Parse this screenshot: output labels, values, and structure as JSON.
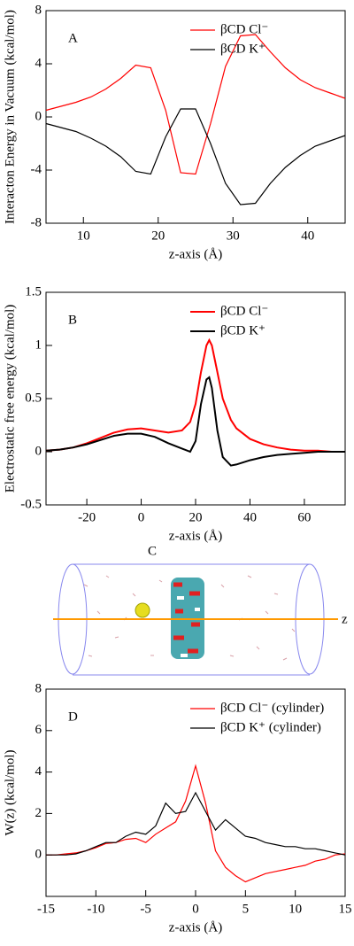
{
  "chart_data": [
    {
      "type": "line",
      "panel_label": "A",
      "xlabel": "z-axis (Å)",
      "ylabel": "Interacton Energy in Vacuum (kcal/mol)",
      "x": [
        5,
        7,
        9,
        11,
        13,
        15,
        17,
        19,
        21,
        23,
        25,
        27,
        29,
        31,
        33,
        35,
        37,
        39,
        41,
        43,
        45
      ],
      "series": [
        {
          "name": "βCD Cl⁻",
          "color": "#ff0000",
          "values": [
            0.5,
            0.8,
            1.1,
            1.5,
            2.1,
            2.9,
            3.9,
            3.7,
            0.5,
            -4.2,
            -4.3,
            -0.5,
            3.8,
            6.1,
            6.2,
            4.9,
            3.7,
            2.8,
            2.2,
            1.8,
            1.4
          ]
        },
        {
          "name": "βCD K⁺",
          "color": "#000000",
          "values": [
            -0.5,
            -0.8,
            -1.1,
            -1.6,
            -2.2,
            -3.0,
            -4.1,
            -4.3,
            -1.5,
            0.6,
            0.6,
            -2.0,
            -5.0,
            -6.6,
            -6.5,
            -5.0,
            -3.8,
            -2.9,
            -2.2,
            -1.8,
            -1.4
          ]
        }
      ],
      "xlim": [
        5,
        45
      ],
      "xticks": [
        10,
        20,
        30,
        40
      ],
      "ylim": [
        -8,
        8
      ],
      "yticks": [
        -8,
        -4,
        0,
        4,
        8
      ],
      "legend": "upper right"
    },
    {
      "type": "line",
      "panel_label": "B",
      "xlabel": "z-axis (Å)",
      "ylabel": "Electrostatic free energy (kcal/mol)",
      "x": [
        -35,
        -30,
        -25,
        -20,
        -15,
        -10,
        -5,
        0,
        5,
        10,
        15,
        18,
        20,
        22,
        24,
        25,
        26,
        28,
        30,
        33,
        35,
        40,
        45,
        50,
        55,
        60,
        65,
        70,
        75
      ],
      "series": [
        {
          "name": "βCD Cl⁻",
          "color": "#ff0000",
          "values": [
            0.01,
            0.02,
            0.04,
            0.08,
            0.13,
            0.18,
            0.21,
            0.22,
            0.2,
            0.18,
            0.2,
            0.28,
            0.45,
            0.75,
            1.0,
            1.05,
            1.0,
            0.75,
            0.5,
            0.3,
            0.22,
            0.12,
            0.07,
            0.04,
            0.02,
            0.01,
            0.01,
            0,
            0
          ]
        },
        {
          "name": "βCD K⁺",
          "color": "#000000",
          "values": [
            0.01,
            0.02,
            0.04,
            0.07,
            0.11,
            0.15,
            0.17,
            0.17,
            0.14,
            0.08,
            0.03,
            0,
            0.1,
            0.45,
            0.68,
            0.7,
            0.6,
            0.2,
            -0.05,
            -0.13,
            -0.12,
            -0.08,
            -0.05,
            -0.03,
            -0.02,
            -0.01,
            0,
            0,
            0
          ]
        }
      ],
      "xlim": [
        -35,
        75
      ],
      "xticks": [
        -20,
        0,
        20,
        40,
        60
      ],
      "ylim": [
        -0.5,
        1.5
      ],
      "yticks": [
        -0.5,
        0,
        0.5,
        1,
        1.5
      ],
      "legend": "upper right"
    },
    {
      "type": "line",
      "panel_label": "D",
      "xlabel": "z-axis (Å)",
      "ylabel": "W(z) (kcal/mol)",
      "x": [
        -15,
        -14,
        -13,
        -12,
        -11,
        -10,
        -9,
        -8,
        -7,
        -6,
        -5,
        -4,
        -3,
        -2,
        -1,
        0,
        1,
        2,
        3,
        4,
        5,
        6,
        7,
        8,
        9,
        10,
        11,
        12,
        13,
        14,
        15
      ],
      "series": [
        {
          "name": "βCD Cl⁻ (cylinder)",
          "color": "#ff0000",
          "values": [
            0,
            0,
            0.05,
            0.1,
            0.2,
            0.35,
            0.55,
            0.6,
            0.75,
            0.8,
            0.6,
            1.0,
            1.3,
            1.6,
            2.6,
            4.3,
            2.5,
            0.2,
            -0.6,
            -1.0,
            -1.3,
            -1.1,
            -0.9,
            -0.8,
            -0.7,
            -0.6,
            -0.5,
            -0.3,
            -0.2,
            0,
            0.05
          ]
        },
        {
          "name": "βCD K⁺ (cylinder)",
          "color": "#000000",
          "values": [
            0,
            0,
            0,
            0.05,
            0.2,
            0.4,
            0.6,
            0.6,
            0.9,
            1.1,
            1.0,
            1.4,
            2.5,
            2.0,
            2.1,
            3.0,
            2.1,
            1.2,
            1.7,
            1.3,
            0.9,
            0.8,
            0.6,
            0.5,
            0.4,
            0.4,
            0.3,
            0.3,
            0.2,
            0.1,
            0
          ]
        }
      ],
      "xlim": [
        -15,
        15
      ],
      "xticks": [
        -15,
        -10,
        -5,
        0,
        5,
        10,
        15
      ],
      "ylim": [
        -2,
        8
      ],
      "yticks": [
        0,
        2,
        4,
        6,
        8
      ],
      "legend": "upper right"
    }
  ],
  "panel_c": {
    "label": "C",
    "axis_label": "z"
  }
}
